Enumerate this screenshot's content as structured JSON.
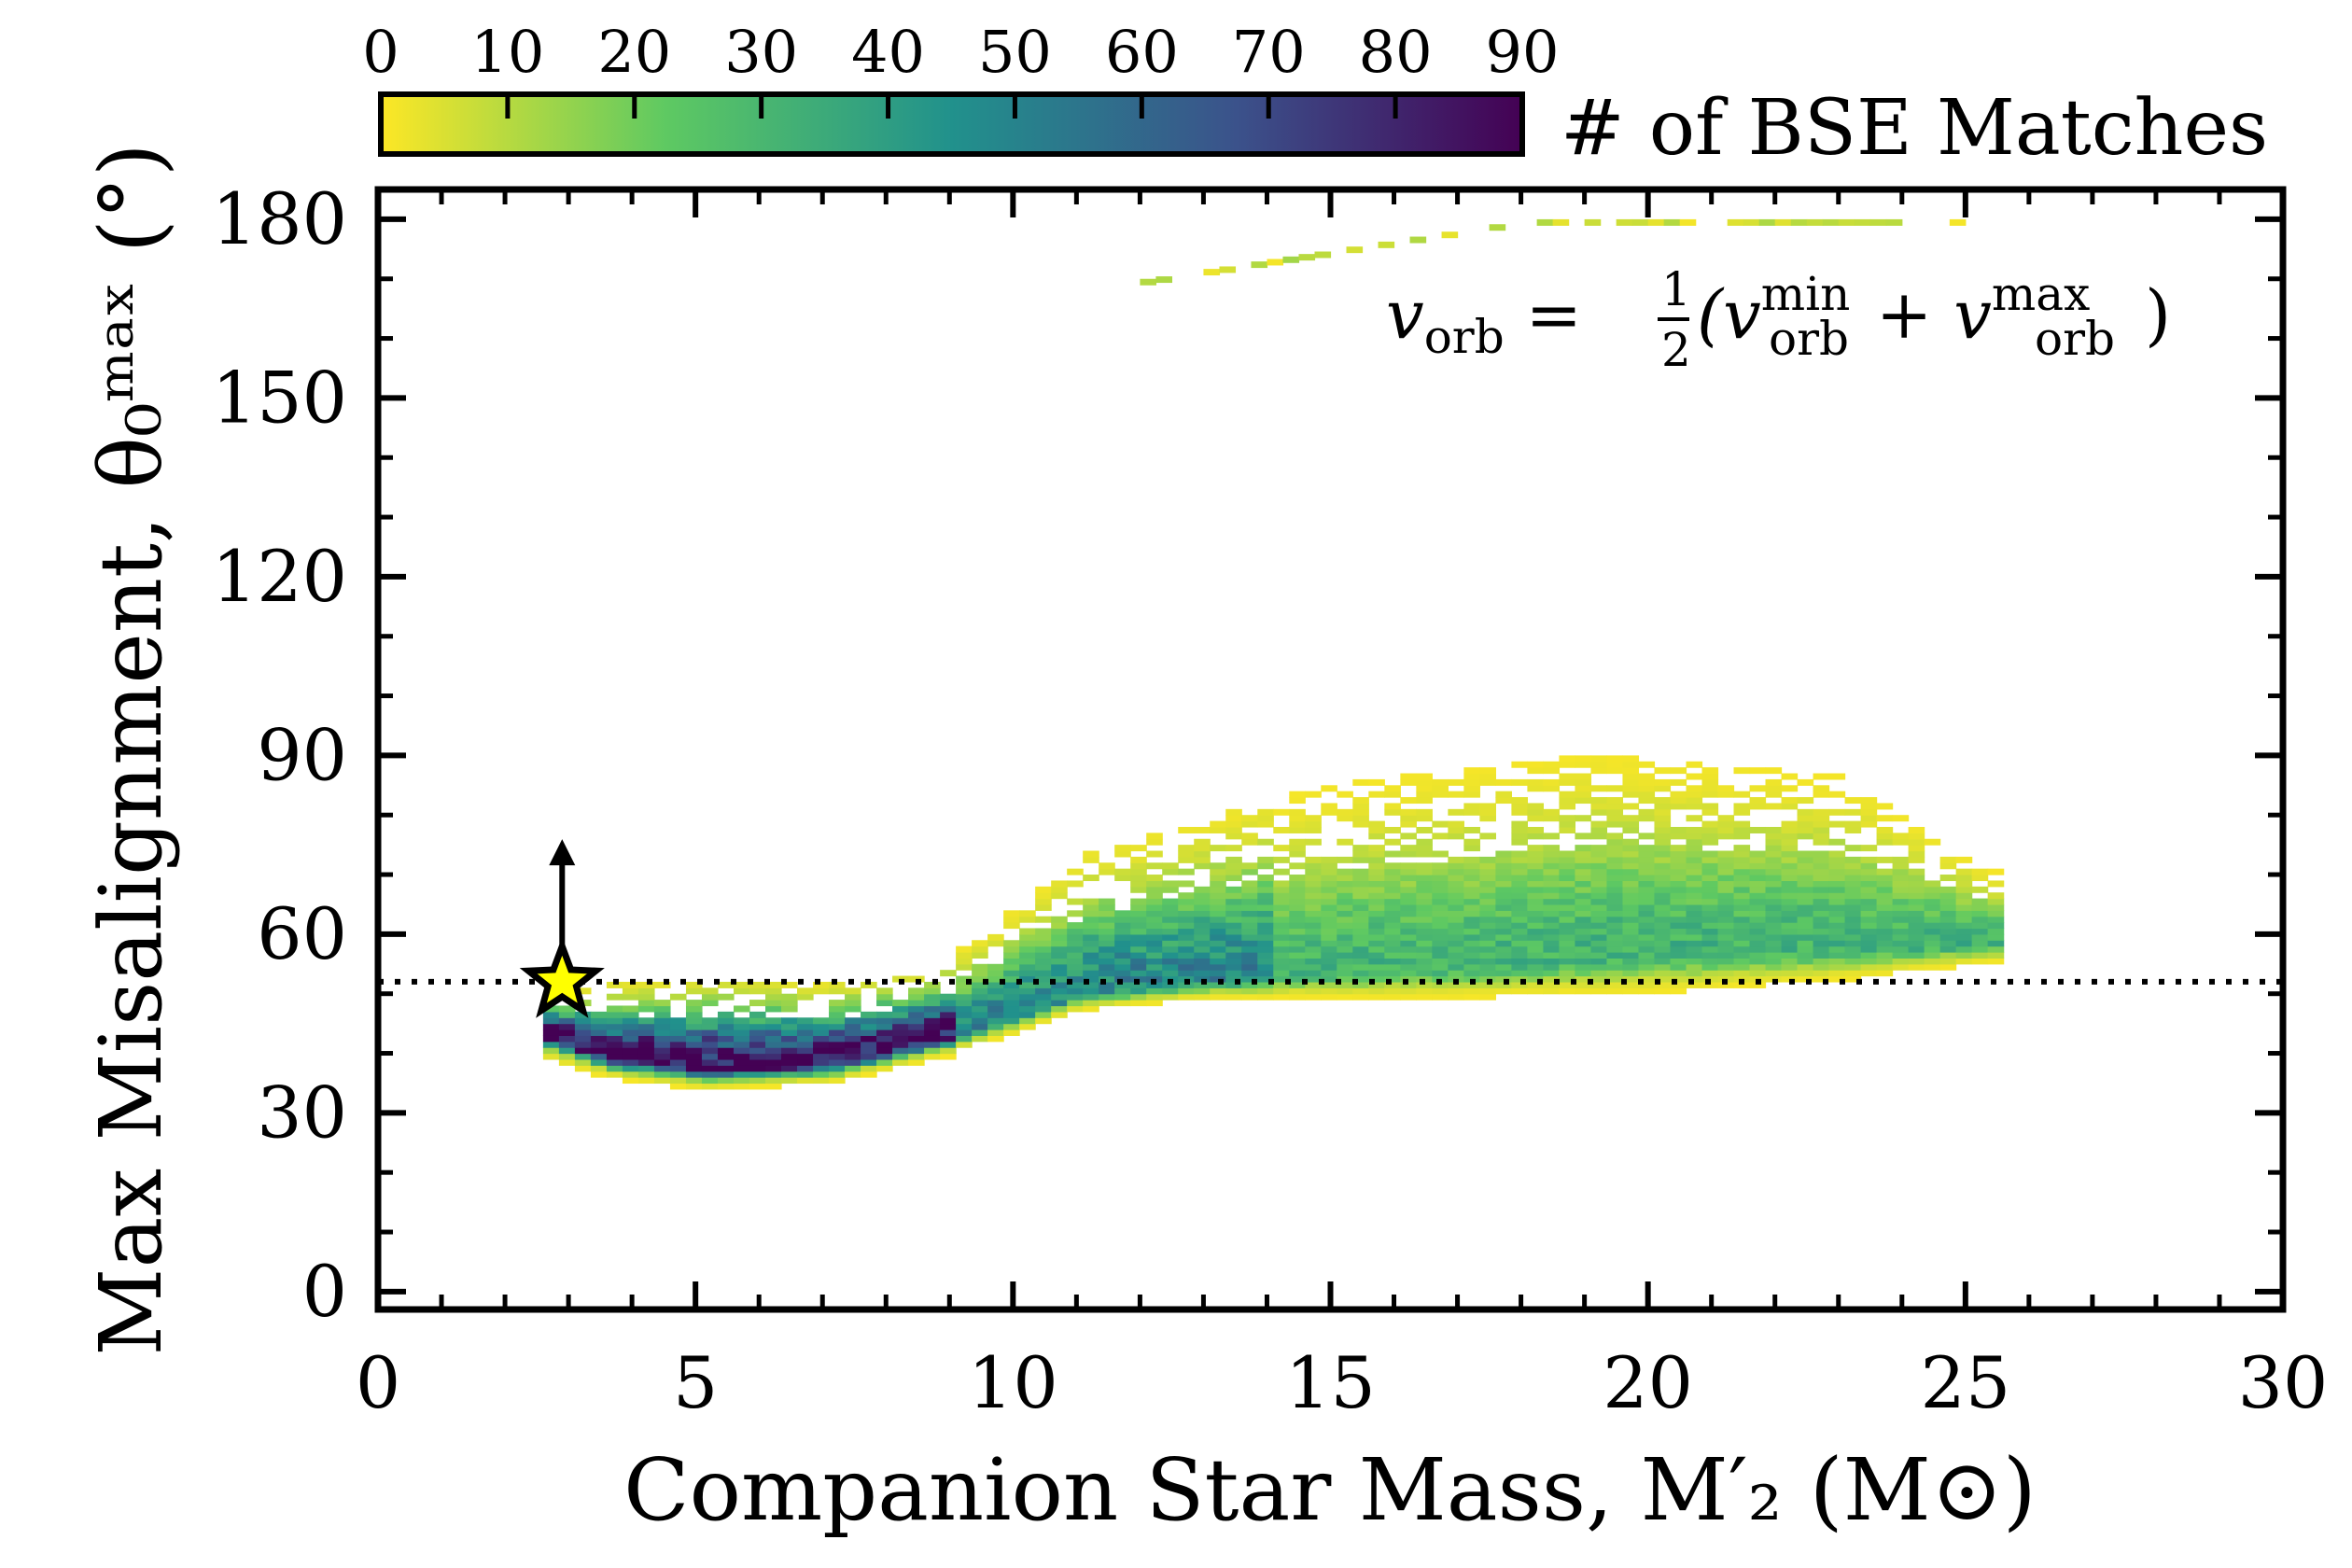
{
  "chart_data": {
    "type": "heatmap",
    "xlabel": "Companion Star Mass,  M′₂ (M⊙)",
    "ylabel": "Max Misalignment,  θ₀ᵐᵃˣ (°)",
    "xlim": [
      0,
      30
    ],
    "ylim": [
      -3,
      185
    ],
    "x_ticks": [
      0,
      5,
      10,
      15,
      20,
      25,
      30
    ],
    "y_ticks": [
      0,
      30,
      60,
      90,
      120,
      150,
      180
    ],
    "x_tick_labels": [
      "0",
      "5",
      "10",
      "15",
      "20",
      "25",
      "30"
    ],
    "y_tick_labels": [
      "0",
      "30",
      "60",
      "90",
      "120",
      "150",
      "180"
    ],
    "colorbar": {
      "label": "# of BSE Matches",
      "range": [
        0,
        90
      ],
      "ticks": [
        0,
        10,
        20,
        30,
        40,
        50,
        60,
        70,
        80,
        90
      ],
      "tick_labels": [
        "0",
        "10",
        "20",
        "30",
        "40",
        "50",
        "60",
        "70",
        "80",
        "90"
      ],
      "colormap": "viridis_r",
      "stops": [
        "#fde725",
        "#5ec962",
        "#21918c",
        "#3b528b",
        "#440154"
      ]
    },
    "annotation": {
      "lhs": "v",
      "lhs_sub": "orb",
      "eq": " = ",
      "frac_num": "1",
      "frac_den": "2",
      "open": "(v",
      "min_sup": "min",
      "min_sub": "orb",
      "plus": " + v",
      "max_sup": "max",
      "max_sub": "orb",
      "close": ")"
    },
    "reference_line": {
      "y": 52,
      "style": "dotted"
    },
    "marker": {
      "shape": "star",
      "x": 2.9,
      "y": 52,
      "lower_limit_arrow_to": 75,
      "color": "#ffff00"
    },
    "distribution": {
      "x_bin_width": 0.25,
      "y_bin_height": 1,
      "x_range": [
        2.6,
        25.4
      ],
      "lower_edge_points": [
        [
          2.6,
          39
        ],
        [
          3.5,
          36
        ],
        [
          5,
          34
        ],
        [
          7,
          35
        ],
        [
          9,
          40
        ],
        [
          11,
          47
        ],
        [
          13,
          49
        ],
        [
          15,
          49
        ],
        [
          17,
          49
        ],
        [
          20,
          50
        ],
        [
          23,
          52
        ],
        [
          25.4,
          55
        ]
      ],
      "dense_ridge_points": [
        [
          2.6,
          43
        ],
        [
          3.5,
          39
        ],
        [
          5,
          37
        ],
        [
          7,
          38
        ],
        [
          9,
          43
        ],
        [
          11,
          50
        ],
        [
          13,
          52
        ],
        [
          15,
          53
        ],
        [
          17,
          54
        ],
        [
          20,
          56
        ],
        [
          23,
          57
        ],
        [
          25.4,
          58
        ]
      ],
      "upper_edge_points": [
        [
          2.6,
          49
        ],
        [
          3.5,
          51
        ],
        [
          5,
          52
        ],
        [
          7,
          51
        ],
        [
          8.5,
          53
        ],
        [
          9.5,
          60
        ],
        [
          11,
          73
        ],
        [
          13,
          79
        ],
        [
          15,
          85
        ],
        [
          17,
          87
        ],
        [
          19,
          90
        ],
        [
          21,
          88
        ],
        [
          23,
          86
        ],
        [
          25.4,
          70
        ]
      ],
      "peak_count": 90,
      "near_180_branch": {
        "x_range": [
          12,
          25
        ],
        "y_range": [
          170,
          180
        ]
      }
    }
  }
}
